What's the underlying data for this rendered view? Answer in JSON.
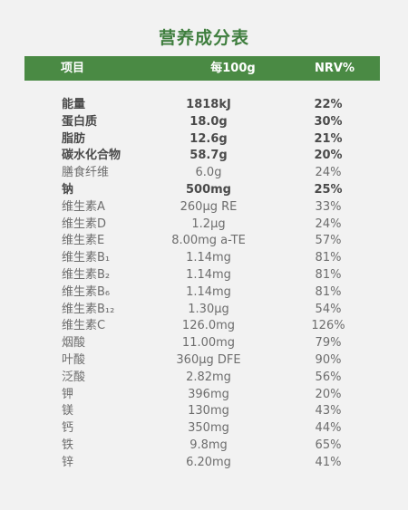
{
  "title": "营养成分表",
  "header": {
    "item": "项目",
    "per100g": "每100g",
    "nrv": "NRV%"
  },
  "rows": [
    {
      "name": "能量",
      "value": "1818kJ",
      "nrv": "22%",
      "bold": true
    },
    {
      "name": "蛋白质",
      "value": "18.0g",
      "nrv": "30%",
      "bold": true
    },
    {
      "name": "脂肪",
      "value": "12.6g",
      "nrv": "21%",
      "bold": true
    },
    {
      "name": "碳水化合物",
      "value": "58.7g",
      "nrv": "20%",
      "bold": true
    },
    {
      "name": "膳食纤维",
      "value": "6.0g",
      "nrv": "24%",
      "bold": false
    },
    {
      "name": "钠",
      "value": "500mg",
      "nrv": "25%",
      "bold": true
    },
    {
      "name": "维生素A",
      "value": "260μg RE",
      "nrv": "33%",
      "bold": false
    },
    {
      "name": "维生素D",
      "value": "1.2μg",
      "nrv": "24%",
      "bold": false
    },
    {
      "name": "维生素E",
      "value": "8.00mg a-TE",
      "nrv": "57%",
      "bold": false
    },
    {
      "name": "维生素B₁",
      "value": "1.14mg",
      "nrv": "81%",
      "bold": false
    },
    {
      "name": "维生素B₂",
      "value": "1.14mg",
      "nrv": "81%",
      "bold": false
    },
    {
      "name": "维生素B₆",
      "value": "1.14mg",
      "nrv": "81%",
      "bold": false
    },
    {
      "name": "维生素B₁₂",
      "value": "1.30μg",
      "nrv": "54%",
      "bold": false
    },
    {
      "name": "维生素C",
      "value": "126.0mg",
      "nrv": "126%",
      "bold": false
    },
    {
      "name": "烟酸",
      "value": "11.00mg",
      "nrv": "79%",
      "bold": false
    },
    {
      "name": "叶酸",
      "value": "360μg DFE",
      "nrv": "90%",
      "bold": false
    },
    {
      "name": "泛酸",
      "value": "2.82mg",
      "nrv": "56%",
      "bold": false
    },
    {
      "name": "钾",
      "value": "396mg",
      "nrv": "20%",
      "bold": false
    },
    {
      "name": "镁",
      "value": "130mg",
      "nrv": "43%",
      "bold": false
    },
    {
      "name": "钙",
      "value": "350mg",
      "nrv": "44%",
      "bold": false
    },
    {
      "name": "铁",
      "value": "9.8mg",
      "nrv": "65%",
      "bold": false
    },
    {
      "name": "锌",
      "value": "6.20mg",
      "nrv": "41%",
      "bold": false
    }
  ],
  "colors": {
    "accent": "#4a8a44",
    "title": "#3f7e3e",
    "background": "#f2f2f2"
  }
}
